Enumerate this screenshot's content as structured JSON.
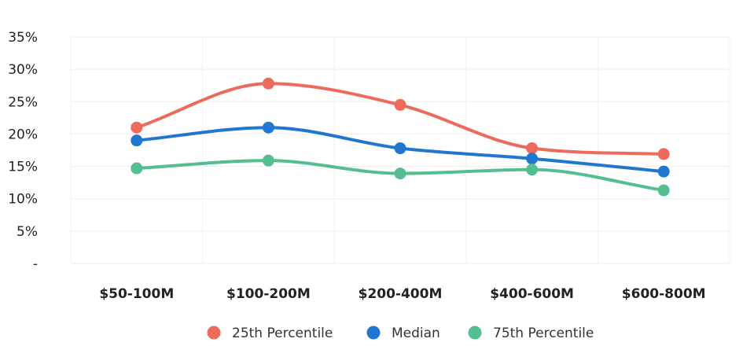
{
  "chart_data": {
    "type": "line",
    "categories": [
      "$50-100M",
      "$100-200M",
      "$200-400M",
      "$400-600M",
      "$600-800M"
    ],
    "yticks": [
      "-",
      "5%",
      "10%",
      "15%",
      "20%",
      "25%",
      "30%",
      "35%"
    ],
    "ylim": [
      0,
      35
    ],
    "y_unit": "%",
    "grid": true,
    "legend_position": "bottom",
    "series": [
      {
        "name": "25th Percentile",
        "color": "#ec6b5c",
        "values": [
          21.0,
          27.8,
          24.5,
          17.8,
          16.9
        ]
      },
      {
        "name": "Median",
        "color": "#1f77d0",
        "values": [
          19.0,
          21.0,
          17.8,
          16.2,
          14.2
        ]
      },
      {
        "name": "75th Percentile",
        "color": "#52bf91",
        "values": [
          14.7,
          15.9,
          13.9,
          14.5,
          11.3
        ]
      }
    ]
  }
}
